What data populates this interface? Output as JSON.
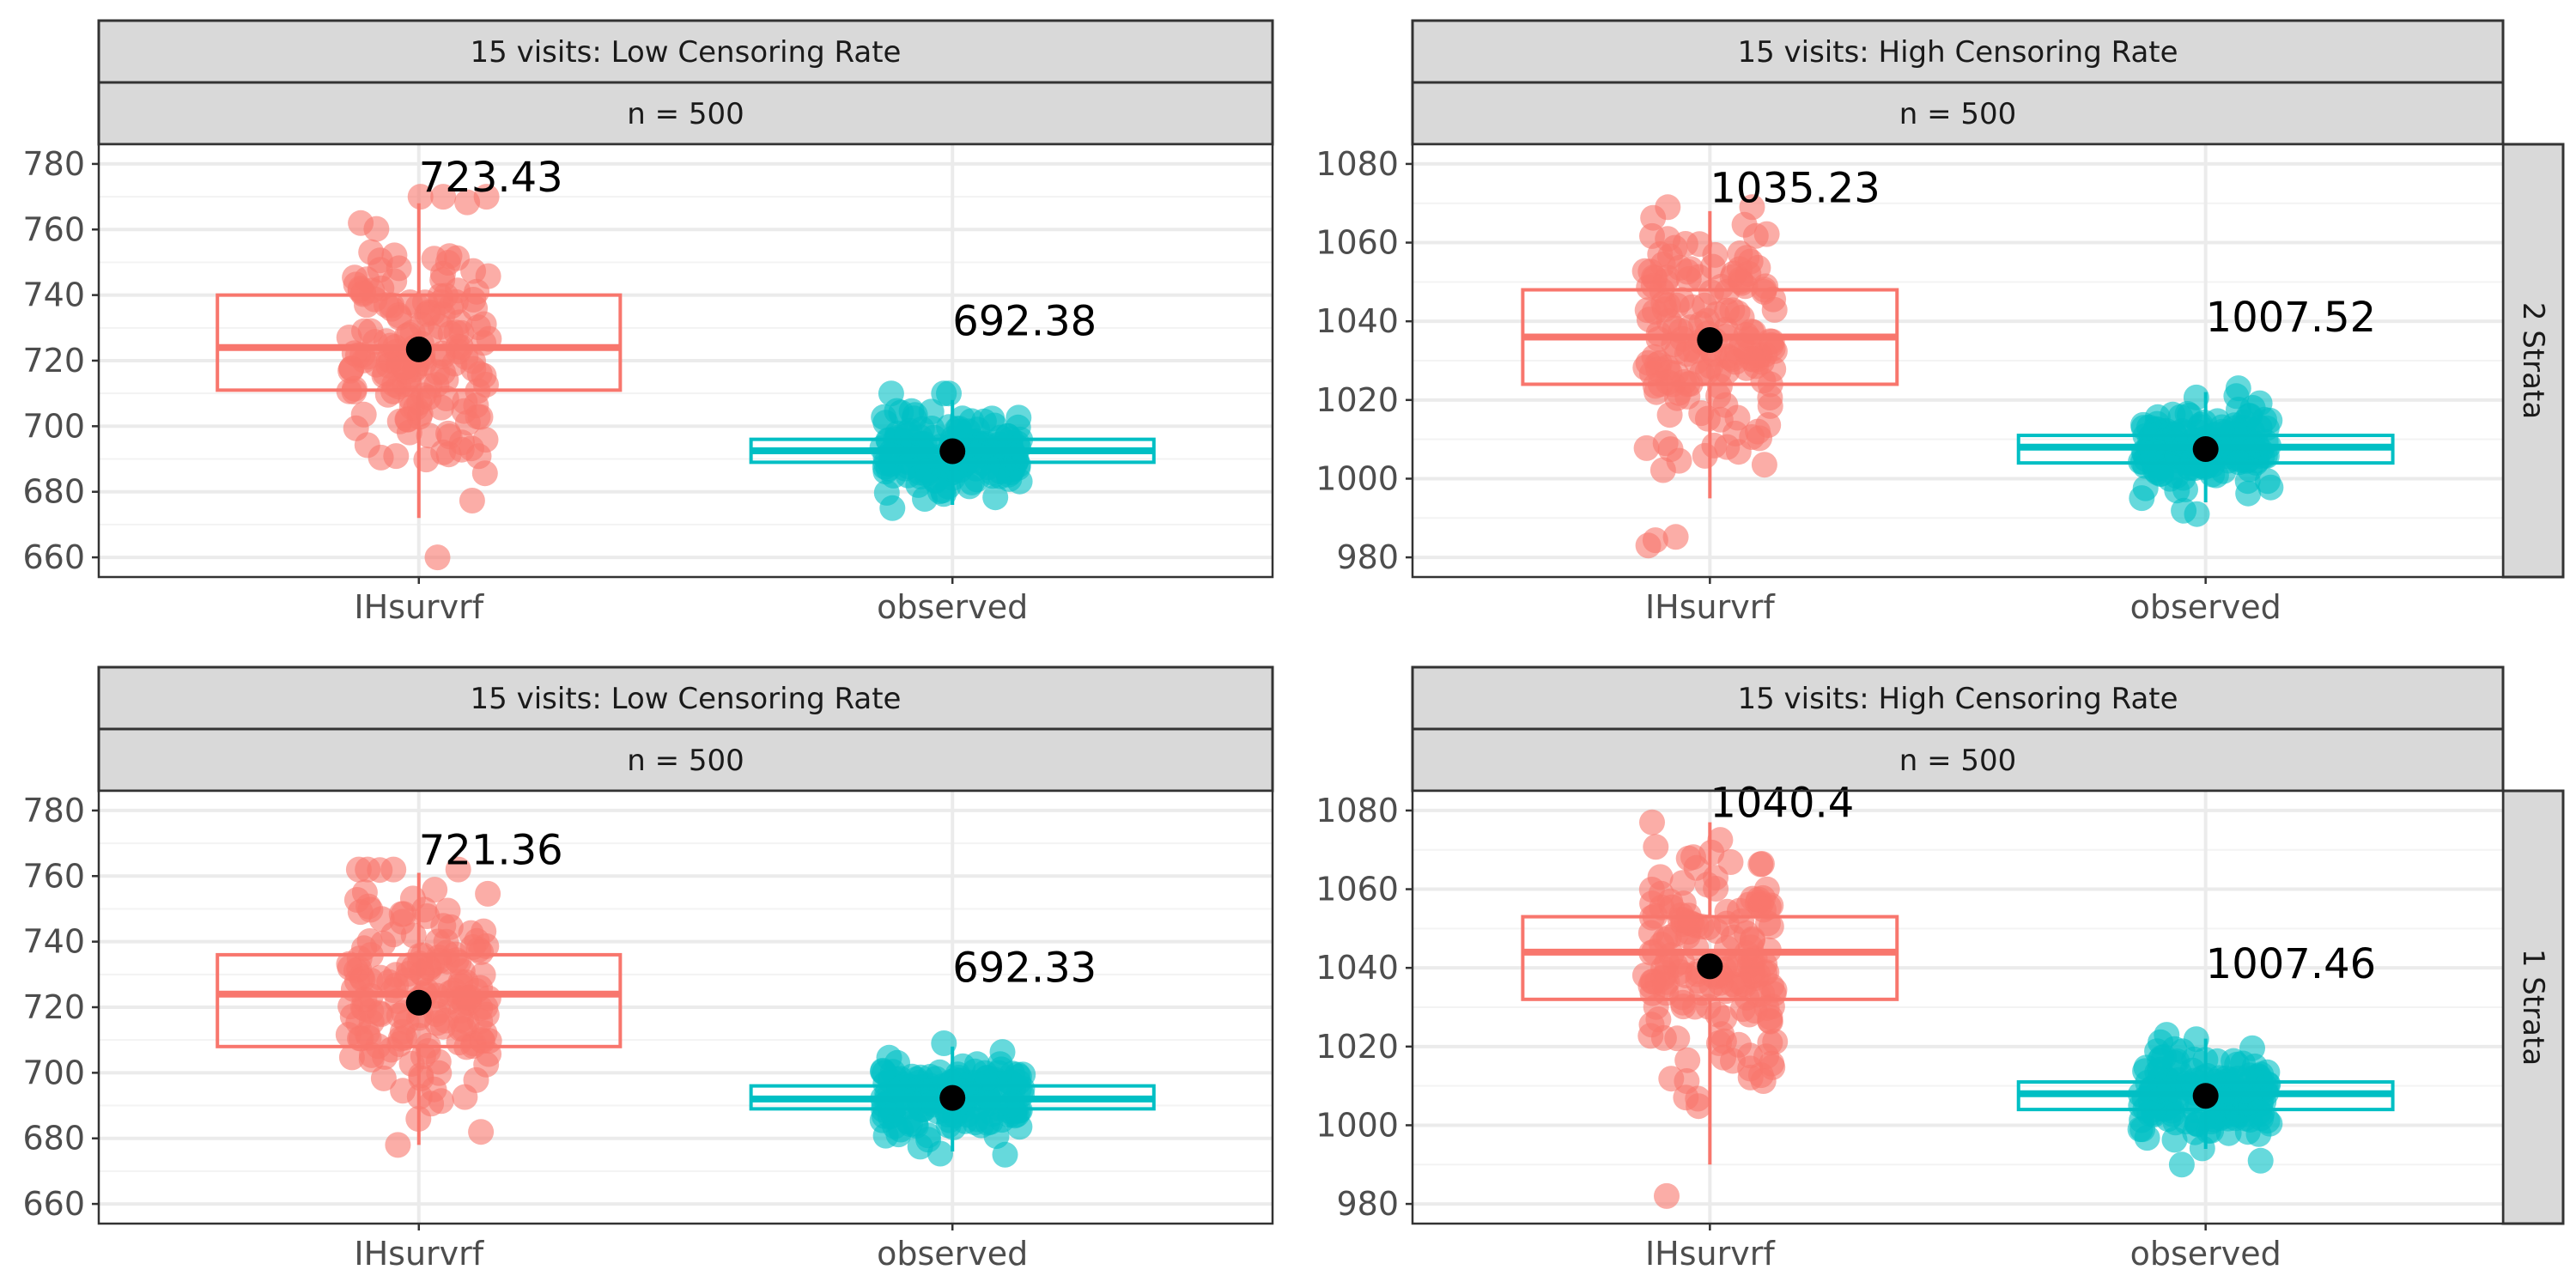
{
  "colors": {
    "IHsurvrf": "#F8766D",
    "observed": "#00BFC4",
    "mean_point": "#000000",
    "strip_fill": "#D9D9D9"
  },
  "chart_data": [
    {
      "type": "boxplot_jitter",
      "facet_col": "15 visits: Low Censoring Rate",
      "facet_sub": "n = 500",
      "facet_row": "2 Strata",
      "categories": [
        "IHsurvrf",
        "observed"
      ],
      "ylim": [
        654,
        786
      ],
      "yticks": [
        660,
        680,
        700,
        720,
        740,
        760,
        780
      ],
      "boxes": [
        {
          "q1": 711,
          "median": 724,
          "q3": 740,
          "wmin": 672,
          "wmax": 768,
          "mean": 723.43,
          "label": "723.43",
          "spread": 19,
          "dmin": 660,
          "dmax": 770
        },
        {
          "q1": 689,
          "median": 692.5,
          "q3": 696,
          "wmin": 676,
          "wmax": 708,
          "mean": 692.38,
          "label": "692.38",
          "spread": 6,
          "dmin": 675,
          "dmax": 710
        }
      ]
    },
    {
      "type": "boxplot_jitter",
      "facet_col": "15 visits: High Censoring Rate",
      "facet_sub": "n = 500",
      "facet_row": "2 Strata",
      "categories": [
        "IHsurvrf",
        "observed"
      ],
      "ylim": [
        975,
        1085
      ],
      "yticks": [
        980,
        1000,
        1020,
        1040,
        1060,
        1080
      ],
      "boxes": [
        {
          "q1": 1024,
          "median": 1036,
          "q3": 1048,
          "wmin": 995,
          "wmax": 1068,
          "mean": 1035.23,
          "label": "1035.23",
          "spread": 15,
          "dmin": 983,
          "dmax": 1069
        },
        {
          "q1": 1004,
          "median": 1008,
          "q3": 1011,
          "wmin": 994,
          "wmax": 1022,
          "mean": 1007.52,
          "label": "1007.52",
          "spread": 5.5,
          "dmin": 991,
          "dmax": 1023
        }
      ]
    },
    {
      "type": "boxplot_jitter",
      "facet_col": "15 visits: Low Censoring Rate",
      "facet_sub": "n = 500",
      "facet_row": "1 Strata",
      "categories": [
        "IHsurvrf",
        "observed"
      ],
      "ylim": [
        654,
        786
      ],
      "yticks": [
        660,
        680,
        700,
        720,
        740,
        760,
        780
      ],
      "boxes": [
        {
          "q1": 708,
          "median": 724,
          "q3": 736,
          "wmin": 678,
          "wmax": 761,
          "mean": 721.36,
          "label": "721.36",
          "spread": 17,
          "dmin": 678,
          "dmax": 762
        },
        {
          "q1": 689,
          "median": 692,
          "q3": 696,
          "wmin": 676,
          "wmax": 708,
          "mean": 692.33,
          "label": "692.33",
          "spread": 6,
          "dmin": 675,
          "dmax": 709
        }
      ]
    },
    {
      "type": "boxplot_jitter",
      "facet_col": "15 visits: High Censoring Rate",
      "facet_sub": "n = 500",
      "facet_row": "1 Strata",
      "categories": [
        "IHsurvrf",
        "observed"
      ],
      "ylim": [
        975,
        1085
      ],
      "yticks": [
        980,
        1000,
        1020,
        1040,
        1060,
        1080
      ],
      "boxes": [
        {
          "q1": 1032,
          "median": 1044,
          "q3": 1053,
          "wmin": 990,
          "wmax": 1077,
          "mean": 1040.4,
          "label": "1040.4",
          "spread": 15,
          "dmin": 982,
          "dmax": 1077
        },
        {
          "q1": 1004,
          "median": 1008,
          "q3": 1011,
          "wmin": 994,
          "wmax": 1022,
          "mean": 1007.46,
          "label": "1007.46",
          "spread": 5.5,
          "dmin": 990,
          "dmax": 1023
        }
      ]
    }
  ]
}
